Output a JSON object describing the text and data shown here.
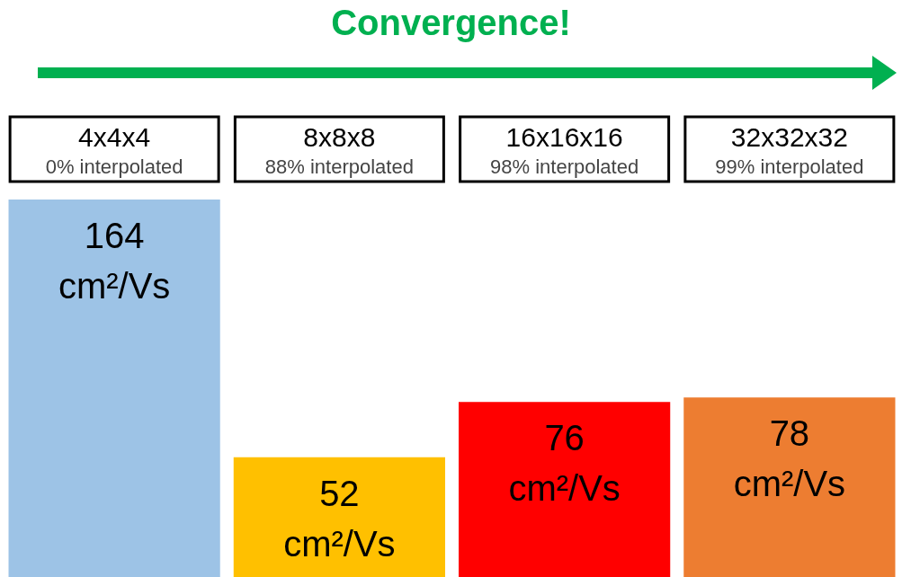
{
  "chart_data": {
    "type": "bar",
    "title": "Convergence!",
    "categories": [
      "4x4x4\n0% interpolated",
      "8x8x8\n88% interpolated",
      "16x16x16\n98% interpolated",
      "32x32x32\n99% interpolated"
    ],
    "values": [
      164,
      52,
      76,
      78
    ],
    "colors": [
      "#9dc3e6",
      "#ffc000",
      "#ff0000",
      "#ed7d31"
    ],
    "value_labels": [
      "164 cm²/Vs",
      "52 cm²/Vs",
      "76 cm²/Vs",
      "78 cm²/Vs"
    ],
    "grid": false
  }
}
